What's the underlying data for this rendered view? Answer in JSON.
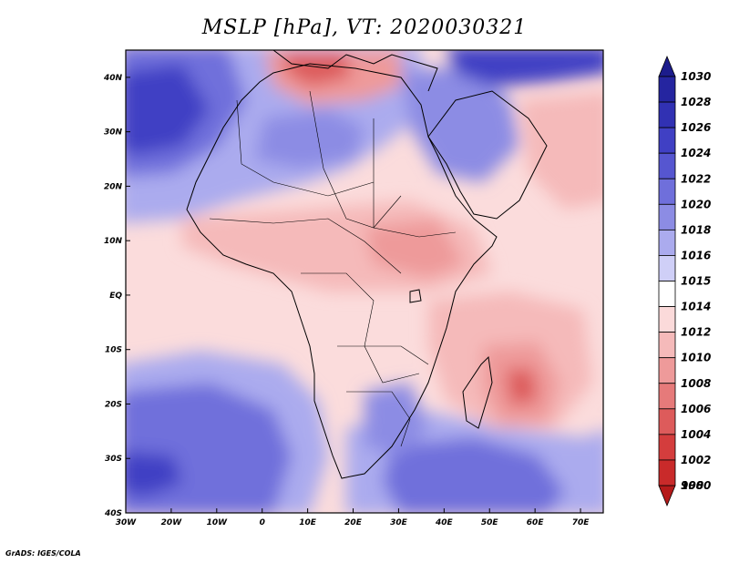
{
  "title": "MSLP [hPa], VT: 2020030321",
  "credit": "GrADS: IGES/COLA",
  "map": {
    "lon_range": [
      -30,
      75
    ],
    "lat_range": [
      -40,
      45
    ],
    "lon_ticks": [
      {
        "value": -30,
        "label": "30W"
      },
      {
        "value": -20,
        "label": "20W"
      },
      {
        "value": -10,
        "label": "10W"
      },
      {
        "value": 0,
        "label": "0"
      },
      {
        "value": 10,
        "label": "10E"
      },
      {
        "value": 20,
        "label": "20E"
      },
      {
        "value": 30,
        "label": "30E"
      },
      {
        "value": 40,
        "label": "40E"
      },
      {
        "value": 50,
        "label": "50E"
      },
      {
        "value": 60,
        "label": "60E"
      },
      {
        "value": 70,
        "label": "70E"
      }
    ],
    "lat_ticks": [
      {
        "value": 40,
        "label": "40N"
      },
      {
        "value": 30,
        "label": "30N"
      },
      {
        "value": 20,
        "label": "20N"
      },
      {
        "value": 10,
        "label": "10N"
      },
      {
        "value": 0,
        "label": "EQ"
      },
      {
        "value": -10,
        "label": "10S"
      },
      {
        "value": -20,
        "label": "20S"
      },
      {
        "value": -30,
        "label": "30S"
      },
      {
        "value": -40,
        "label": "40S"
      }
    ],
    "background_color": "#fbdcdc"
  },
  "colorbar": {
    "levels": [
      {
        "label": "1030",
        "color": "#1c1c8c"
      },
      {
        "label": "1028",
        "color": "#2525a0"
      },
      {
        "label": "1026",
        "color": "#3131b3"
      },
      {
        "label": "1024",
        "color": "#4040c4"
      },
      {
        "label": "1022",
        "color": "#5656d0"
      },
      {
        "label": "1020",
        "color": "#6f6fdb"
      },
      {
        "label": "1018",
        "color": "#8c8ce4"
      },
      {
        "label": "1016",
        "color": "#ababee"
      },
      {
        "label": "1015",
        "color": "#cfcff7"
      },
      {
        "label": "1014",
        "color": "#ffffff"
      },
      {
        "label": "1012",
        "color": "#fbdada"
      },
      {
        "label": "1010",
        "color": "#f5baba"
      },
      {
        "label": "1008",
        "color": "#ee9a9a"
      },
      {
        "label": "1006",
        "color": "#e67a7a"
      },
      {
        "label": "1004",
        "color": "#dd5b5b"
      },
      {
        "label": "1002",
        "color": "#d43d3d"
      },
      {
        "label": "1000",
        "color": "#c92a2a"
      },
      {
        "label": "998",
        "color": "#b51a1a"
      }
    ]
  }
}
